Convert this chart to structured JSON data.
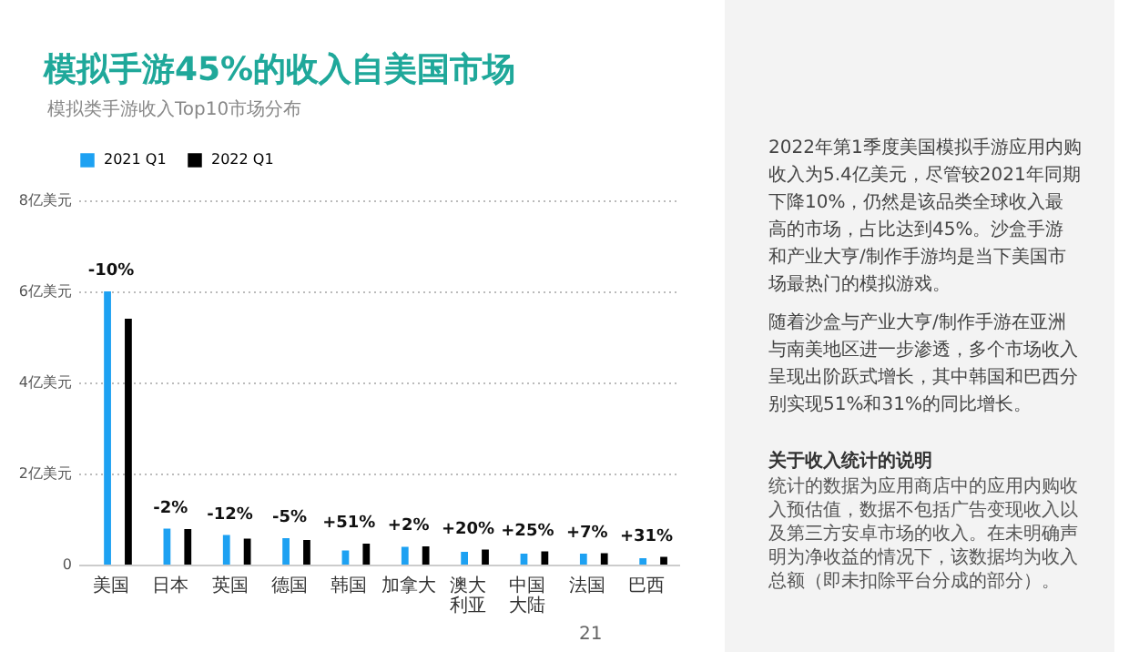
{
  "chart_data": {
    "type": "bar",
    "title": "模拟手游45%的收入自美国市场",
    "subtitle": "模拟类手游收入Top10市场分布",
    "categories": [
      "美国",
      "日本",
      "英国",
      "德国",
      "韩国",
      "加拿大",
      "澳大利亚",
      "中国大陆",
      "法国",
      "巴西"
    ],
    "series": [
      {
        "name": "2021 Q1",
        "color": "#1da1f2",
        "values": [
          6.0,
          0.79,
          0.65,
          0.58,
          0.31,
          0.39,
          0.28,
          0.24,
          0.24,
          0.14
        ]
      },
      {
        "name": "2022 Q1",
        "color": "#000000",
        "values": [
          5.4,
          0.78,
          0.57,
          0.54,
          0.46,
          0.4,
          0.33,
          0.29,
          0.25,
          0.17
        ]
      }
    ],
    "ylim": [
      0,
      8
    ],
    "yticks": [
      0,
      {
        "value": 2,
        "label": "2亿美元"
      },
      {
        "value": 4,
        "label": "4亿美元"
      },
      {
        "value": 6,
        "label": "6亿美元"
      },
      {
        "value": 8,
        "label": "8亿美元"
      }
    ],
    "grid": "y",
    "legend": "top",
    "annotations": [
      {
        "text": "-10%",
        "x": "美国",
        "y": 6.0
      },
      {
        "text": "-2%",
        "x": "日本",
        "y": 0.79
      },
      {
        "text": "-12%",
        "x": "英国",
        "y": 0.65
      },
      {
        "text": "-5%",
        "x": "德国",
        "y": 0.58
      },
      {
        "text": "+51%",
        "x": "韩国",
        "y": 0.46
      },
      {
        "text": "+2%",
        "x": "加拿大",
        "y": 0.4
      },
      {
        "text": "+20%",
        "x": "澳大利亚",
        "y": 0.33
      },
      {
        "text": "+25%",
        "x": "中国大陆",
        "y": 0.29
      },
      {
        "text": "+7%",
        "x": "法国",
        "y": 0.25
      },
      {
        "text": "+31%",
        "x": "巴西",
        "y": 0.17
      },
      "2022年第1季度美国模拟手游应用内购收入为5.4亿美元，尽管较2021年同期下降10%，仍然是该品类全球收入最高的市场，占比达到45%。沙盒手游和产业大亨/制作手游均是当下美国市场最热门的模拟游戏。",
      "随着沙盒与产业大亨/制作手游在亚洲与南美地区进一步渗透，多个市场收入呈现出阶跃式增长，其中韩国和巴西分别实现51%和31%的同比增长。",
      "关于收入统计的说明",
      "统计的数据为应用商店中的应用内购收入预估值，数据不包括广告变现收入以及第三方安卓市场的收入。在未明确声明为净收益的情况下，该数据均为收入总额（即未扣除平台分成的部分）。",
      "21"
    ]
  }
}
